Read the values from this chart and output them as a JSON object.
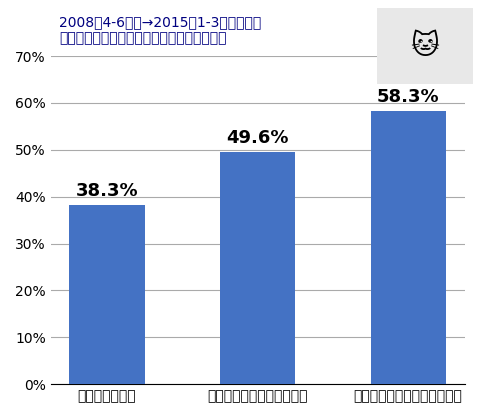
{
  "categories": [
    "ビッグコミック",
    "ビッグコミックスピリッツ",
    "ビッグコミックスペリオール"
  ],
  "values": [
    0.383,
    0.496,
    0.583
  ],
  "labels": [
    "38.3%",
    "49.6%",
    "58.3%"
  ],
  "bar_color": "#4472C4",
  "title_line1": "2008年4-6月期→2015年1-3月期に至る",
  "title_line2": "ビッグコミック系各紙の印刷証明部数減少率",
  "ylim": [
    0,
    0.7
  ],
  "yticks": [
    0.0,
    0.1,
    0.2,
    0.3,
    0.4,
    0.5,
    0.6,
    0.7
  ],
  "ytick_labels": [
    "0%",
    "10%",
    "20%",
    "30%",
    "40%",
    "50%",
    "60%",
    "70%"
  ],
  "background_color": "#FFFFFF",
  "plot_background_color": "#FFFFFF",
  "grid_color": "#AAAAAA",
  "title_color": "#000080",
  "label_fontsize": 13,
  "title_fontsize": 14,
  "tick_fontsize": 11
}
